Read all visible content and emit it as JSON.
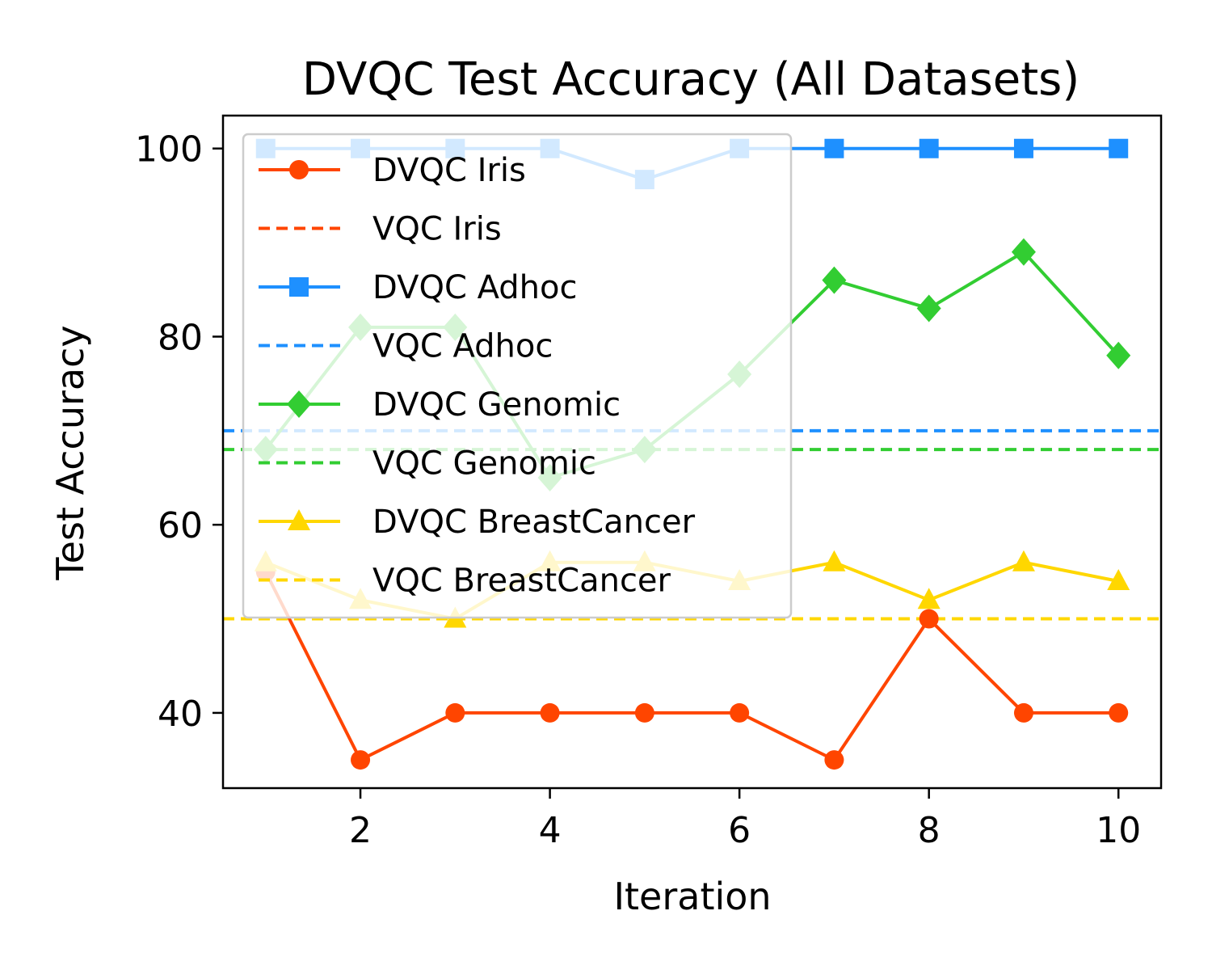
{
  "chart_data": {
    "type": "line",
    "title": "DVQC Test Accuracy (All Datasets)",
    "xlabel": "Iteration",
    "ylabel": "Test Accuracy",
    "xlim": [
      0.55,
      10.45
    ],
    "ylim": [
      32,
      103.5
    ],
    "xticks": [
      2,
      4,
      6,
      8,
      10
    ],
    "yticks": [
      40,
      60,
      80,
      100
    ],
    "grid": false,
    "legend_position": "top-left",
    "x": [
      1,
      2,
      3,
      4,
      5,
      6,
      7,
      8,
      9,
      10
    ],
    "series": [
      {
        "name": "DVQC Iris",
        "kind": "line",
        "marker": "circle",
        "color": "#ff4500",
        "values": [
          55,
          35,
          40,
          40,
          40,
          40,
          35,
          50,
          40,
          40
        ]
      },
      {
        "name": "VQC Iris",
        "kind": "baseline",
        "color": "#ff4500",
        "value": 50
      },
      {
        "name": "DVQC Adhoc",
        "kind": "line",
        "marker": "square",
        "color": "#1e90ff",
        "values": [
          100,
          100,
          100,
          100,
          96.7,
          100,
          100,
          100,
          100,
          100
        ]
      },
      {
        "name": "VQC Adhoc",
        "kind": "baseline",
        "color": "#1e90ff",
        "value": 70
      },
      {
        "name": "DVQC Genomic",
        "kind": "line",
        "marker": "diamond",
        "color": "#32cd32",
        "values": [
          68,
          81,
          81,
          65,
          68,
          76,
          86,
          83,
          89,
          78
        ]
      },
      {
        "name": "VQC Genomic",
        "kind": "baseline",
        "color": "#32cd32",
        "value": 68
      },
      {
        "name": "DVQC BreastCancer",
        "kind": "line",
        "marker": "triangle",
        "color": "#ffd700",
        "values": [
          56,
          52,
          50,
          56,
          56,
          54,
          56,
          52,
          56,
          54
        ]
      },
      {
        "name": "VQC BreastCancer",
        "kind": "baseline",
        "color": "#ffd700",
        "value": 50
      }
    ]
  }
}
